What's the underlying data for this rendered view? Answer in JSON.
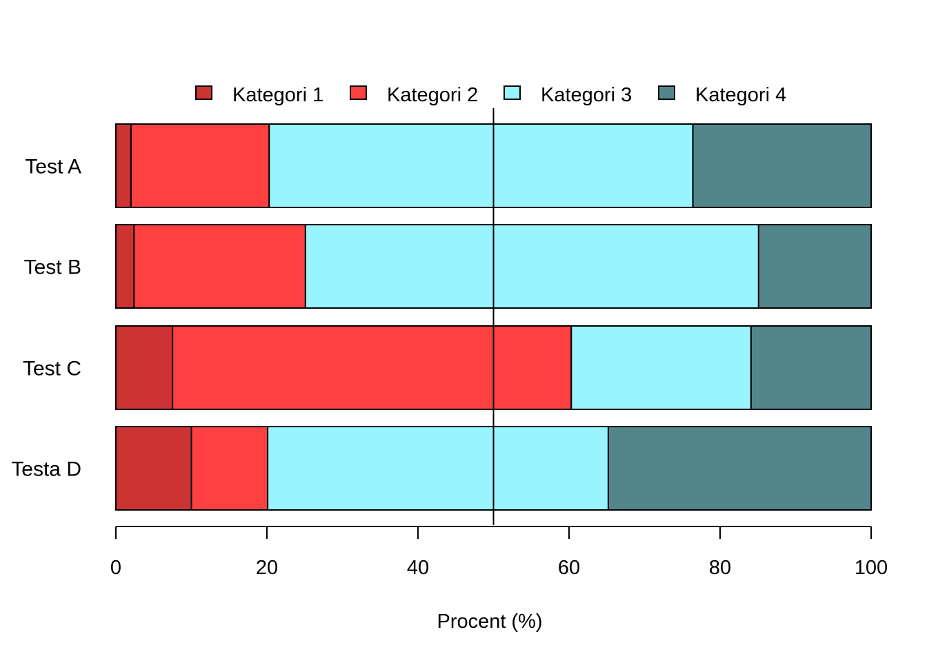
{
  "chart_data": {
    "type": "bar",
    "orientation": "horizontal",
    "stacked": true,
    "categories": [
      "Test A",
      "Test B",
      "Test C",
      "Testa D"
    ],
    "series": [
      {
        "name": "Kategori 1",
        "color": "#CD3333",
        "values": [
          2.0,
          2.4,
          7.5,
          10.0
        ]
      },
      {
        "name": "Kategori 2",
        "color": "#FF4040",
        "values": [
          18.3,
          22.7,
          52.8,
          10.1
        ]
      },
      {
        "name": "Kategori 3",
        "color": "#98F5FF",
        "values": [
          56.1,
          60.0,
          23.8,
          45.1
        ]
      },
      {
        "name": "Kategori 4",
        "color": "#53868B",
        "values": [
          23.6,
          14.9,
          15.9,
          34.8
        ]
      }
    ],
    "reference_line_x": 50,
    "xlim": [
      0,
      100
    ],
    "x_ticks": [
      "0",
      "20",
      "40",
      "60",
      "80",
      "100"
    ],
    "xlabel": "Procent (%)",
    "ylabel": "",
    "title": "",
    "legend_position": "top",
    "grid": false
  }
}
